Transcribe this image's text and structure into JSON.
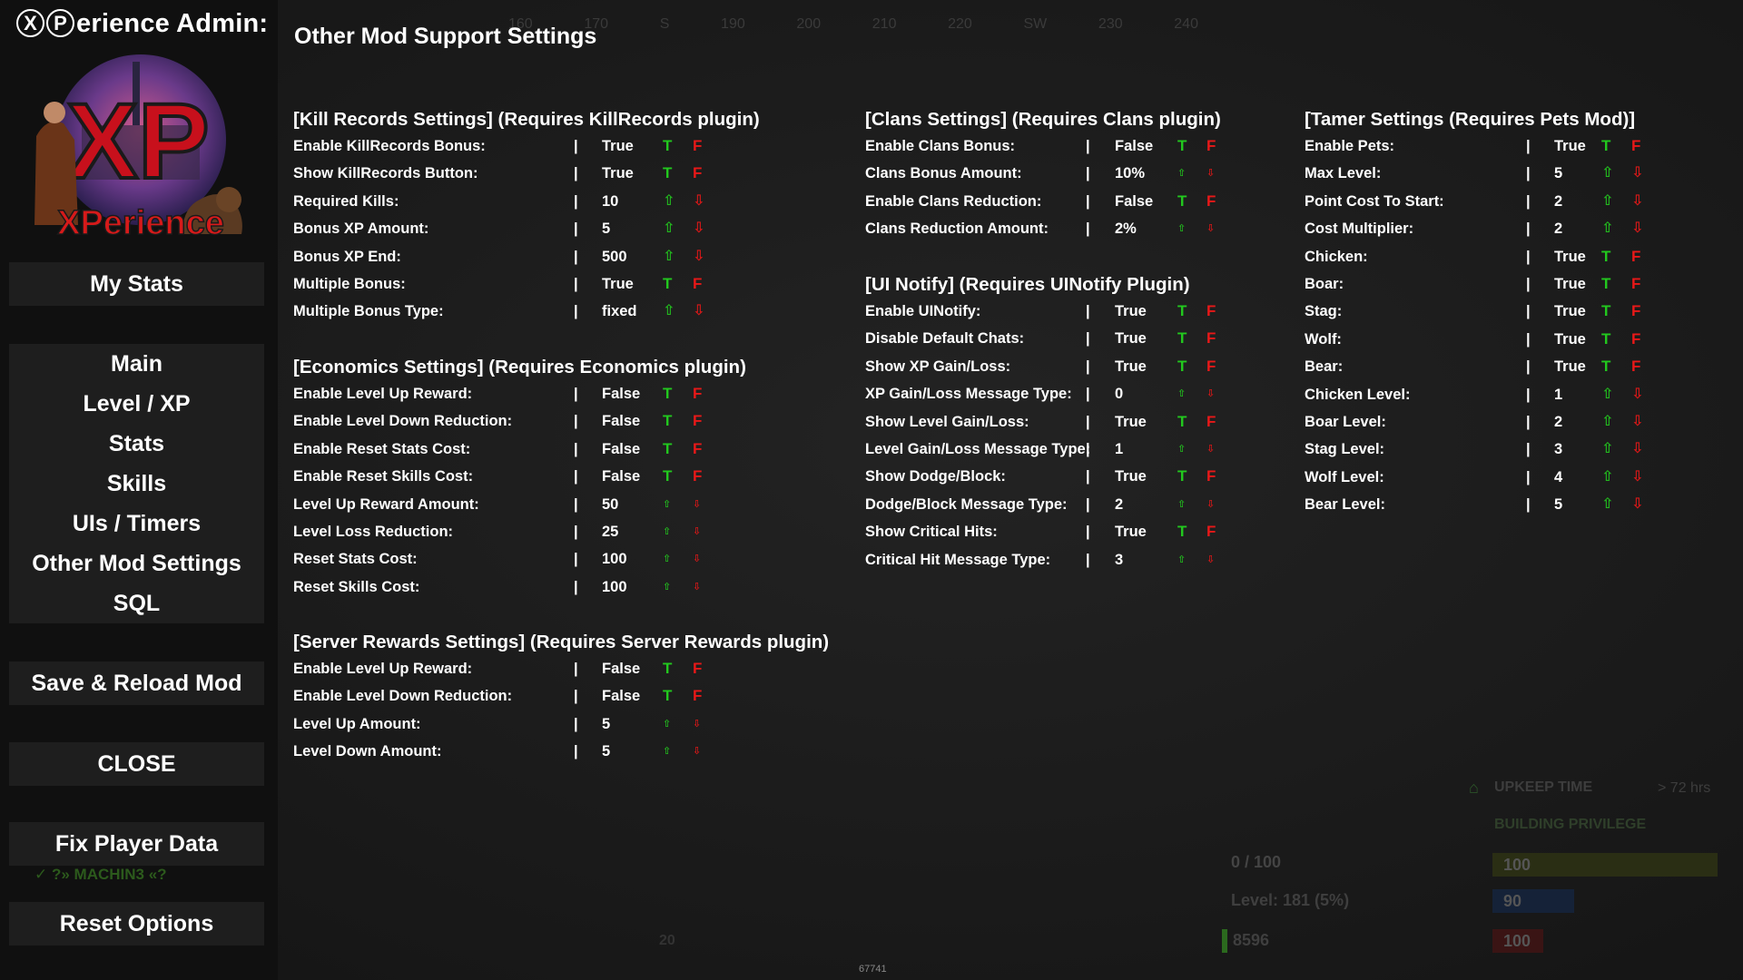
{
  "sidebar": {
    "title_prefix_1": "X",
    "title_prefix_2": "P",
    "title_rest": "erience Admin:",
    "logo_text_big": "XP",
    "logo_text_small": "XPerience",
    "buttons": {
      "my_stats": "My Stats",
      "main": "Main",
      "level_xp": "Level / XP",
      "stats": "Stats",
      "skills": "Skills",
      "uis_timers": "UIs / Timers",
      "other_mod": "Other Mod Settings",
      "sql": "SQL",
      "save_reload": "Save & Reload Mod",
      "close": "CLOSE",
      "fix_player": "Fix Player Data",
      "reset_options": "Reset Options"
    },
    "player_tag": "✓ ?» MACHIN3 «?"
  },
  "page_title": "Other Mod Support Settings",
  "controls": {
    "true_label": "T",
    "false_label": "F",
    "up_glyph": "⇧",
    "down_glyph": "⇩",
    "separator": "|"
  },
  "sections": {
    "killrecords": {
      "title": "[Kill Records Settings] (Requires KillRecords plugin)",
      "rows": [
        {
          "label": "Enable KillRecords Bonus:",
          "value": "True",
          "type": "bool"
        },
        {
          "label": "Show KillRecords Button:",
          "value": "True",
          "type": "bool"
        },
        {
          "label": "Required Kills:",
          "value": "10",
          "type": "num"
        },
        {
          "label": "Bonus XP Amount:",
          "value": "5",
          "type": "num"
        },
        {
          "label": "Bonus XP End:",
          "value": "500",
          "type": "num"
        },
        {
          "label": "Multiple Bonus:",
          "value": "True",
          "type": "bool"
        },
        {
          "label": "Multiple Bonus Type:",
          "value": "fixed",
          "type": "num"
        }
      ]
    },
    "economics": {
      "title": "[Economics Settings] (Requires Economics plugin)",
      "rows": [
        {
          "label": "Enable Level Up Reward:",
          "value": "False",
          "type": "bool"
        },
        {
          "label": "Enable Level Down Reduction:",
          "value": "False",
          "type": "bool"
        },
        {
          "label": "Enable Reset Stats Cost:",
          "value": "False",
          "type": "bool"
        },
        {
          "label": "Enable Reset Skills Cost:",
          "value": "False",
          "type": "bool"
        },
        {
          "label": "Level Up Reward Amount:",
          "value": "50",
          "type": "num-sm"
        },
        {
          "label": "Level Loss Reduction:",
          "value": "25",
          "type": "num-sm"
        },
        {
          "label": "Reset Stats Cost:",
          "value": "100",
          "type": "num-sm"
        },
        {
          "label": "Reset Skills Cost:",
          "value": "100",
          "type": "num-sm"
        }
      ]
    },
    "serverrewards": {
      "title": "[Server Rewards Settings] (Requires Server Rewards plugin)",
      "rows": [
        {
          "label": "Enable Level Up Reward:",
          "value": "False",
          "type": "bool"
        },
        {
          "label": "Enable Level Down Reduction:",
          "value": "False",
          "type": "bool"
        },
        {
          "label": "Level Up Amount:",
          "value": "5",
          "type": "num-sm"
        },
        {
          "label": "Level Down Amount:",
          "value": "5",
          "type": "num-sm"
        }
      ]
    },
    "clans": {
      "title": "[Clans Settings] (Requires Clans plugin)",
      "rows": [
        {
          "label": "Enable Clans Bonus:",
          "value": "False",
          "type": "bool"
        },
        {
          "label": "Clans Bonus Amount:",
          "value": "10%",
          "type": "num-sm"
        },
        {
          "label": "Enable Clans Reduction:",
          "value": "False",
          "type": "bool"
        },
        {
          "label": "Clans Reduction Amount:",
          "value": "2%",
          "type": "num-sm"
        }
      ]
    },
    "uinotify": {
      "title": "[UI Notify] (Requires UINotify Plugin)",
      "rows": [
        {
          "label": "Enable UINotify:",
          "value": "True",
          "type": "bool"
        },
        {
          "label": "Disable Default Chats:",
          "value": "True",
          "type": "bool"
        },
        {
          "label": "Show XP Gain/Loss:",
          "value": "True",
          "type": "bool"
        },
        {
          "label": "XP Gain/Loss Message Type:",
          "value": "0",
          "type": "num-sm"
        },
        {
          "label": "Show Level Gain/Loss:",
          "value": "True",
          "type": "bool"
        },
        {
          "label": "Level Gain/Loss Message Type:",
          "value": "1",
          "type": "num-sm"
        },
        {
          "label": "Show Dodge/Block:",
          "value": "True",
          "type": "bool"
        },
        {
          "label": "Dodge/Block Message Type:",
          "value": "2",
          "type": "num-sm"
        },
        {
          "label": "Show Critical Hits:",
          "value": "True",
          "type": "bool"
        },
        {
          "label": "Critical Hit Message Type:",
          "value": "3",
          "type": "num-sm"
        }
      ]
    },
    "tamer": {
      "title": "[Tamer Settings (Requires Pets Mod)]",
      "rows": [
        {
          "label": "Enable Pets:",
          "value": "True",
          "type": "bool"
        },
        {
          "label": "Max Level:",
          "value": "5",
          "type": "num"
        },
        {
          "label": "Point Cost To Start:",
          "value": "2",
          "type": "num"
        },
        {
          "label": "Cost Multiplier:",
          "value": "2",
          "type": "num"
        },
        {
          "label": "Chicken:",
          "value": "True",
          "type": "bool"
        },
        {
          "label": "Boar:",
          "value": "True",
          "type": "bool"
        },
        {
          "label": "Stag:",
          "value": "True",
          "type": "bool"
        },
        {
          "label": "Wolf:",
          "value": "True",
          "type": "bool"
        },
        {
          "label": "Bear:",
          "value": "True",
          "type": "bool"
        },
        {
          "label": "Chicken Level:",
          "value": "1",
          "type": "num"
        },
        {
          "label": "Boar Level:",
          "value": "2",
          "type": "num"
        },
        {
          "label": "Stag Level:",
          "value": "3",
          "type": "num"
        },
        {
          "label": "Wolf Level:",
          "value": "4",
          "type": "num"
        },
        {
          "label": "Bear Level:",
          "value": "5",
          "type": "num"
        }
      ]
    }
  },
  "background_hud": {
    "compass": [
      "160",
      "170",
      "S",
      "190",
      "200",
      "210",
      "220",
      "SW",
      "230",
      "240"
    ],
    "upkeep_label": "UPKEEP TIME",
    "upkeep_value": "> 72 hrs",
    "building_priv": "BUILDING PRIVILEGE",
    "xp_counter": "0 / 100",
    "level_text": "Level: 181 (5%)",
    "xp_value": "8596",
    "health": "100",
    "hydration": "90",
    "food": "100",
    "hotbar_number": "20",
    "fps": "67741"
  },
  "colors": {
    "true_green": "#22c81e",
    "false_red": "#e81818",
    "button_bg": "#1e1e1e",
    "sidebar_bg": "#101010"
  }
}
